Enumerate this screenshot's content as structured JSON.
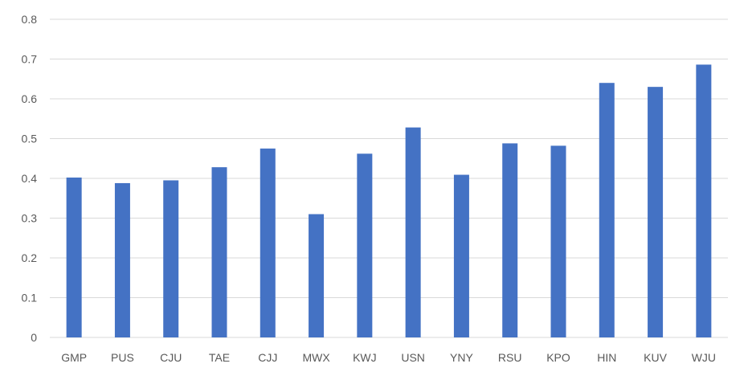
{
  "chart_data": {
    "type": "bar",
    "title": "",
    "xlabel": "",
    "ylabel": "",
    "categories": [
      "GMP",
      "PUS",
      "CJU",
      "TAE",
      "CJJ",
      "MWX",
      "KWJ",
      "USN",
      "YNY",
      "RSU",
      "KPO",
      "HIN",
      "KUV",
      "WJU"
    ],
    "values": [
      0.402,
      0.388,
      0.395,
      0.428,
      0.475,
      0.31,
      0.462,
      0.528,
      0.409,
      0.488,
      0.482,
      0.64,
      0.63,
      0.686
    ],
    "ylim": [
      0,
      0.8
    ],
    "yticks": [
      "0",
      "0.1",
      "0.2",
      "0.3",
      "0.4",
      "0.5",
      "0.6",
      "0.7",
      "0.8"
    ],
    "grid": true,
    "legend": "none",
    "colors": {
      "bar": "#4472c4",
      "grid": "#d9d9d9",
      "text": "#595959"
    }
  }
}
